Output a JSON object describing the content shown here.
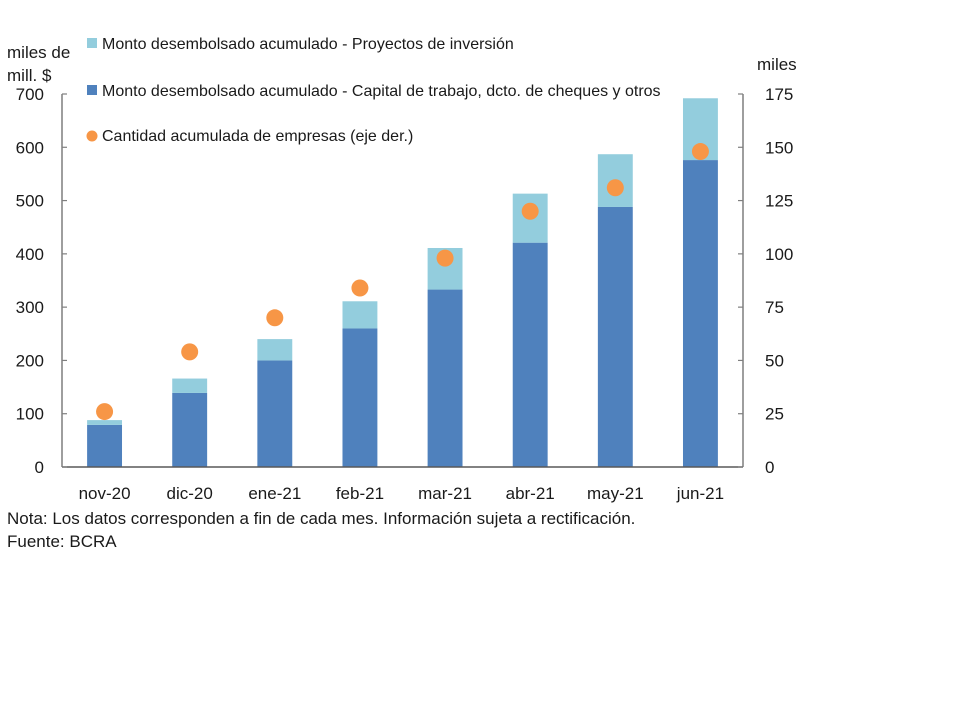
{
  "chart_data": {
    "type": "bar",
    "stacked": true,
    "title": "",
    "categories": [
      "nov-20",
      "dic-20",
      "ene-21",
      "feb-21",
      "mar-21",
      "abr-21",
      "may-21",
      "jun-21"
    ],
    "series": [
      {
        "name": "Monto desembolsado acumulado - Capital de trabajo, dcto. de cheques y otros",
        "type": "bar",
        "axis": "left",
        "color": "#4f81bd",
        "values": [
          79,
          139,
          200,
          260,
          333,
          421,
          488,
          576
        ]
      },
      {
        "name": "Monto desembolsado acumulado - Proyectos de inversión",
        "type": "bar",
        "axis": "left",
        "color": "#93cddd",
        "values": [
          9,
          27,
          40,
          51,
          78,
          92,
          99,
          116
        ]
      },
      {
        "name": "Cantidad acumulada de empresas (eje der.)",
        "type": "scatter",
        "axis": "right",
        "color": "#f79646",
        "values": [
          26,
          54,
          70,
          84,
          98,
          120,
          131,
          148
        ]
      }
    ],
    "legend": {
      "position": "top-left",
      "order": [
        1,
        0,
        2
      ]
    },
    "y_left": {
      "label_line1": "miles de",
      "label_line2": "mill. $",
      "ylim": [
        0,
        700
      ],
      "ticks": [
        "0",
        "100",
        "200",
        "300",
        "400",
        "500",
        "600",
        "700"
      ],
      "tick_values": [
        0,
        100,
        200,
        300,
        400,
        500,
        600,
        700
      ]
    },
    "y_right": {
      "label": "miles",
      "ylim": [
        0,
        175
      ],
      "ticks": [
        "0",
        "25",
        "50",
        "75",
        "100",
        "125",
        "150",
        "175"
      ],
      "tick_values": [
        0,
        25,
        50,
        75,
        100,
        125,
        150,
        175
      ]
    },
    "grid": false
  },
  "notes": {
    "nota": "Nota: Los datos corresponden a fin de cada mes. Información sujeta a rectificación.",
    "fuente": "Fuente: BCRA"
  }
}
